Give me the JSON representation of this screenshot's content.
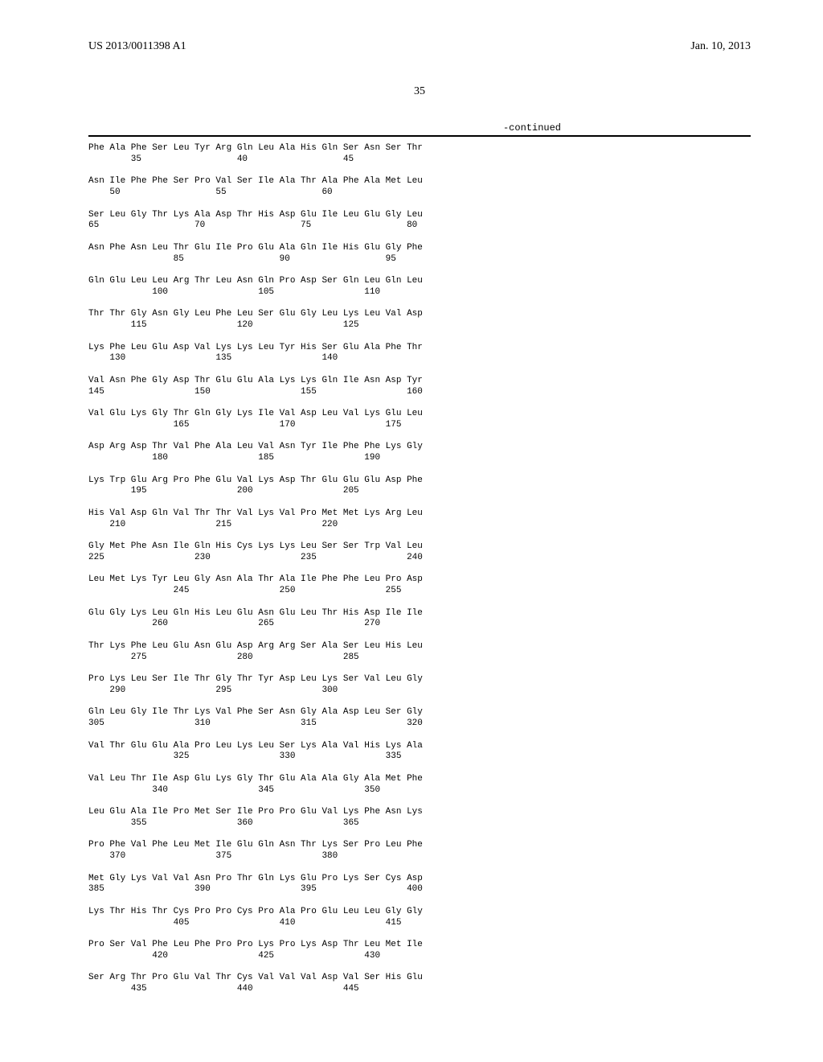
{
  "header": {
    "pub_number": "US 2013/0011398 A1",
    "pub_date": "Jan. 10, 2013"
  },
  "page_number": "35",
  "continued_label": "-continued",
  "sequence_rows": [
    {
      "aa": "Phe Ala Phe Ser Leu Tyr Arg Gln Leu Ala His Gln Ser Asn Ser Thr",
      "nums": "        35                  40                  45"
    },
    {
      "aa": "Asn Ile Phe Phe Ser Pro Val Ser Ile Ala Thr Ala Phe Ala Met Leu",
      "nums": "    50                  55                  60"
    },
    {
      "aa": "Ser Leu Gly Thr Lys Ala Asp Thr His Asp Glu Ile Leu Glu Gly Leu",
      "nums": "65                  70                  75                  80"
    },
    {
      "aa": "Asn Phe Asn Leu Thr Glu Ile Pro Glu Ala Gln Ile His Glu Gly Phe",
      "nums": "                85                  90                  95"
    },
    {
      "aa": "Gln Glu Leu Leu Arg Thr Leu Asn Gln Pro Asp Ser Gln Leu Gln Leu",
      "nums": "            100                 105                 110"
    },
    {
      "aa": "Thr Thr Gly Asn Gly Leu Phe Leu Ser Glu Gly Leu Lys Leu Val Asp",
      "nums": "        115                 120                 125"
    },
    {
      "aa": "Lys Phe Leu Glu Asp Val Lys Lys Leu Tyr His Ser Glu Ala Phe Thr",
      "nums": "    130                 135                 140"
    },
    {
      "aa": "Val Asn Phe Gly Asp Thr Glu Glu Ala Lys Lys Gln Ile Asn Asp Tyr",
      "nums": "145                 150                 155                 160"
    },
    {
      "aa": "Val Glu Lys Gly Thr Gln Gly Lys Ile Val Asp Leu Val Lys Glu Leu",
      "nums": "                165                 170                 175"
    },
    {
      "aa": "Asp Arg Asp Thr Val Phe Ala Leu Val Asn Tyr Ile Phe Phe Lys Gly",
      "nums": "            180                 185                 190"
    },
    {
      "aa": "Lys Trp Glu Arg Pro Phe Glu Val Lys Asp Thr Glu Glu Glu Asp Phe",
      "nums": "        195                 200                 205"
    },
    {
      "aa": "His Val Asp Gln Val Thr Thr Val Lys Val Pro Met Met Lys Arg Leu",
      "nums": "    210                 215                 220"
    },
    {
      "aa": "Gly Met Phe Asn Ile Gln His Cys Lys Lys Leu Ser Ser Trp Val Leu",
      "nums": "225                 230                 235                 240"
    },
    {
      "aa": "Leu Met Lys Tyr Leu Gly Asn Ala Thr Ala Ile Phe Phe Leu Pro Asp",
      "nums": "                245                 250                 255"
    },
    {
      "aa": "Glu Gly Lys Leu Gln His Leu Glu Asn Glu Leu Thr His Asp Ile Ile",
      "nums": "            260                 265                 270"
    },
    {
      "aa": "Thr Lys Phe Leu Glu Asn Glu Asp Arg Arg Ser Ala Ser Leu His Leu",
      "nums": "        275                 280                 285"
    },
    {
      "aa": "Pro Lys Leu Ser Ile Thr Gly Thr Tyr Asp Leu Lys Ser Val Leu Gly",
      "nums": "    290                 295                 300"
    },
    {
      "aa": "Gln Leu Gly Ile Thr Lys Val Phe Ser Asn Gly Ala Asp Leu Ser Gly",
      "nums": "305                 310                 315                 320"
    },
    {
      "aa": "Val Thr Glu Glu Ala Pro Leu Lys Leu Ser Lys Ala Val His Lys Ala",
      "nums": "                325                 330                 335"
    },
    {
      "aa": "Val Leu Thr Ile Asp Glu Lys Gly Thr Glu Ala Ala Gly Ala Met Phe",
      "nums": "            340                 345                 350"
    },
    {
      "aa": "Leu Glu Ala Ile Pro Met Ser Ile Pro Pro Glu Val Lys Phe Asn Lys",
      "nums": "        355                 360                 365"
    },
    {
      "aa": "Pro Phe Val Phe Leu Met Ile Glu Gln Asn Thr Lys Ser Pro Leu Phe",
      "nums": "    370                 375                 380"
    },
    {
      "aa": "Met Gly Lys Val Val Asn Pro Thr Gln Lys Glu Pro Lys Ser Cys Asp",
      "nums": "385                 390                 395                 400"
    },
    {
      "aa": "Lys Thr His Thr Cys Pro Pro Cys Pro Ala Pro Glu Leu Leu Gly Gly",
      "nums": "                405                 410                 415"
    },
    {
      "aa": "Pro Ser Val Phe Leu Phe Pro Pro Lys Pro Lys Asp Thr Leu Met Ile",
      "nums": "            420                 425                 430"
    },
    {
      "aa": "Ser Arg Thr Pro Glu Val Thr Cys Val Val Val Asp Val Ser His Glu",
      "nums": "        435                 440                 445"
    }
  ]
}
